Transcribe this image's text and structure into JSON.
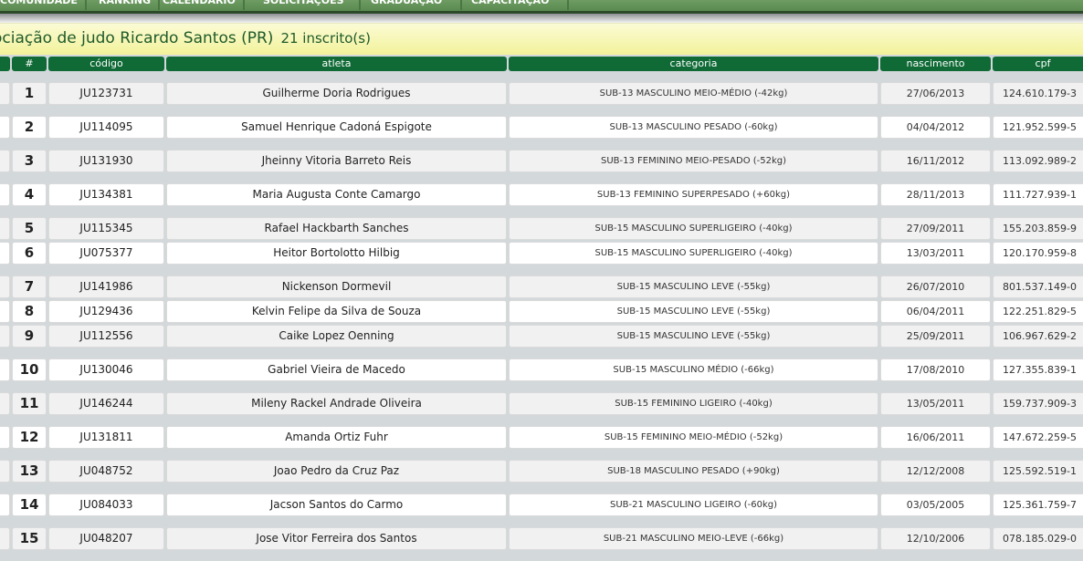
{
  "nav": {
    "items": [
      "COMUNIDADE",
      "RANKING",
      "CALENDÁRIO",
      "SOLICITAÇÕES",
      "GRADUAÇÃO",
      "CAPACITAÇÃO"
    ]
  },
  "header": {
    "title": "ociação de judo Ricardo Santos (PR)",
    "count": "21 inscrito(s)"
  },
  "table": {
    "columns": [
      "#",
      "código",
      "atleta",
      "categoria",
      "nascimento",
      "cpf"
    ],
    "rows": [
      {
        "n": "1",
        "codigo": "JU123731",
        "atleta": "Guilherme Doria Rodrigues",
        "categoria": "SUB-13 MASCULINO MEIO-MÉDIO (-42kg)",
        "nascimento": "27/06/2013",
        "cpf": "124.610.179-3"
      },
      {
        "n": "2",
        "codigo": "JU114095",
        "atleta": "Samuel Henrique Cadoná Espigote",
        "categoria": "SUB-13 MASCULINO PESADO (-60kg)",
        "nascimento": "04/04/2012",
        "cpf": "121.952.599-5"
      },
      {
        "n": "3",
        "codigo": "JU131930",
        "atleta": "Jheinny Vitoria Barreto Reis",
        "categoria": "SUB-13 FEMININO MEIO-PESADO (-52kg)",
        "nascimento": "16/11/2012",
        "cpf": "113.092.989-2"
      },
      {
        "n": "4",
        "codigo": "JU134381",
        "atleta": "Maria Augusta Conte Camargo",
        "categoria": "SUB-13 FEMININO SUPERPESADO (+60kg)",
        "nascimento": "28/11/2013",
        "cpf": "111.727.939-1"
      },
      {
        "n": "5",
        "codigo": "JU115345",
        "atleta": "Rafael Hackbarth Sanches",
        "categoria": "SUB-15 MASCULINO SUPERLIGEIRO (-40kg)",
        "nascimento": "27/09/2011",
        "cpf": "155.203.859-9"
      },
      {
        "n": "6",
        "codigo": "JU075377",
        "atleta": "Heitor Bortolotto Hilbig",
        "categoria": "SUB-15 MASCULINO SUPERLIGEIRO (-40kg)",
        "nascimento": "13/03/2011",
        "cpf": "120.170.959-8"
      },
      {
        "n": "7",
        "codigo": "JU141986",
        "atleta": "Nickenson Dormevil",
        "categoria": "SUB-15 MASCULINO LEVE (-55kg)",
        "nascimento": "26/07/2010",
        "cpf": "801.537.149-0"
      },
      {
        "n": "8",
        "codigo": "JU129436",
        "atleta": "Kelvin Felipe da Silva de Souza",
        "categoria": "SUB-15 MASCULINO LEVE (-55kg)",
        "nascimento": "06/04/2011",
        "cpf": "122.251.829-5"
      },
      {
        "n": "9",
        "codigo": "JU112556",
        "atleta": "Caike Lopez Oenning",
        "categoria": "SUB-15 MASCULINO LEVE (-55kg)",
        "nascimento": "25/09/2011",
        "cpf": "106.967.629-2"
      },
      {
        "n": "10",
        "codigo": "JU130046",
        "atleta": "Gabriel Vieira de Macedo",
        "categoria": "SUB-15 MASCULINO MÉDIO (-66kg)",
        "nascimento": "17/08/2010",
        "cpf": "127.355.839-1"
      },
      {
        "n": "11",
        "codigo": "JU146244",
        "atleta": "Mileny Rackel Andrade Oliveira",
        "categoria": "SUB-15 FEMININO LIGEIRO (-40kg)",
        "nascimento": "13/05/2011",
        "cpf": "159.737.909-3"
      },
      {
        "n": "12",
        "codigo": "JU131811",
        "atleta": "Amanda Ortiz Fuhr",
        "categoria": "SUB-15 FEMININO MEIO-MÉDIO (-52kg)",
        "nascimento": "16/06/2011",
        "cpf": "147.672.259-5"
      },
      {
        "n": "13",
        "codigo": "JU048752",
        "atleta": "Joao Pedro da Cruz Paz",
        "categoria": "SUB-18 MASCULINO PESADO (+90kg)",
        "nascimento": "12/12/2008",
        "cpf": "125.592.519-1"
      },
      {
        "n": "14",
        "codigo": "JU084033",
        "atleta": "Jacson Santos do Carmo",
        "categoria": "SUB-21 MASCULINO LIGEIRO (-60kg)",
        "nascimento": "03/05/2005",
        "cpf": "125.361.759-7"
      },
      {
        "n": "15",
        "codigo": "JU048207",
        "atleta": "Jose Vitor Ferreira dos Santos",
        "categoria": "SUB-21 MASCULINO MEIO-LEVE (-66kg)",
        "nascimento": "12/10/2006",
        "cpf": "078.185.029-0"
      }
    ]
  }
}
